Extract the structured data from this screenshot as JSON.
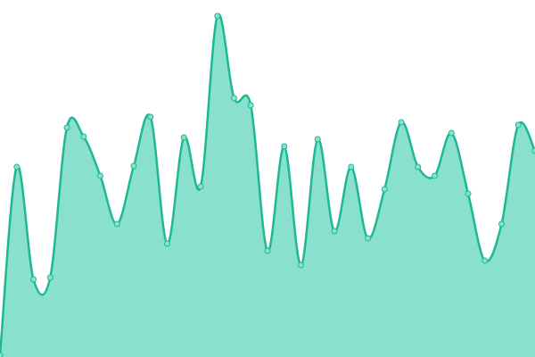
{
  "chart_data": {
    "type": "area",
    "values": [
      2,
      213,
      87,
      89,
      257,
      247,
      203,
      149,
      214,
      269,
      127,
      246,
      191,
      382,
      290,
      282,
      119,
      236,
      103,
      244,
      141,
      213,
      133,
      188,
      263,
      213,
      203,
      251,
      183,
      108,
      149,
      260,
      231
    ],
    "ylim": [
      0,
      400
    ],
    "color": "#1fb894",
    "fill": "#88e0cd"
  }
}
